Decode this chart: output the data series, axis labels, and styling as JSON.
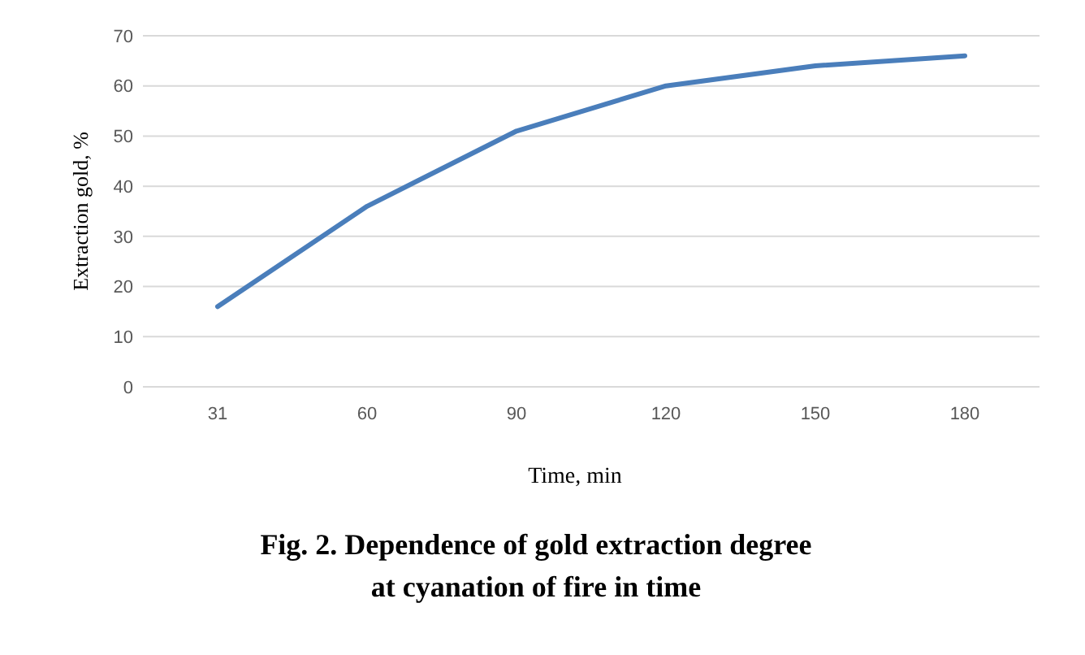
{
  "chart_data": {
    "type": "line",
    "title": "Fig. 2. Dependence of gold extraction degree at cyanation of fire in time",
    "xlabel": "Time, min",
    "ylabel": "Extraction gold, %",
    "categories": [
      "31",
      "60",
      "90",
      "120",
      "150",
      "180"
    ],
    "series": [
      {
        "color": "#4a7ebb",
        "values": [
          16,
          36,
          51,
          60,
          64,
          66
        ]
      }
    ],
    "ylim": [
      0,
      70
    ],
    "yticks": [
      0,
      10,
      20,
      30,
      40,
      50,
      60,
      70
    ],
    "grid": "y",
    "marker": "none",
    "line_style": "solid"
  }
}
